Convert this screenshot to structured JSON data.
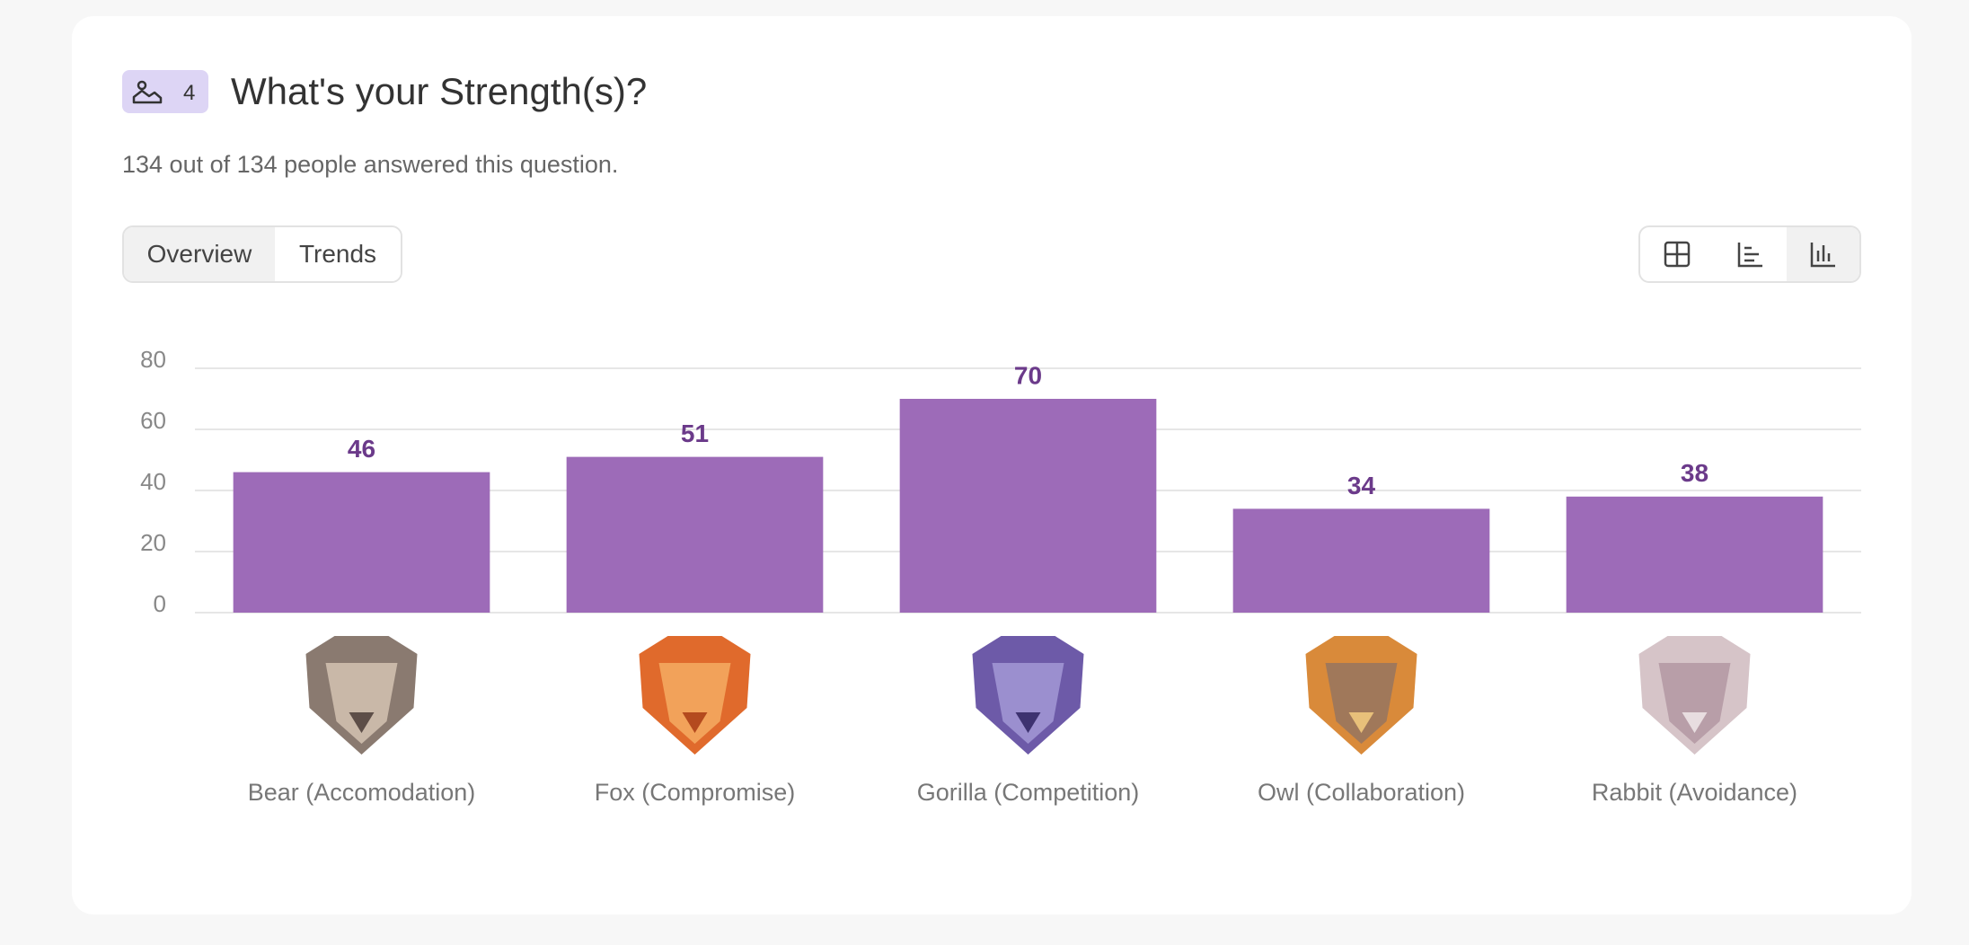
{
  "header": {
    "badge": 4,
    "title": "What's your Strength(s)?",
    "subtitle": "134 out of 134 people answered this question."
  },
  "tabs": [
    "Overview",
    "Trends"
  ],
  "chart_data": {
    "type": "bar",
    "categories": [
      "Bear (Accomodation)",
      "Fox (Compromise)",
      "Gorilla (Competition)",
      "Owl (Collaboration)",
      "Rabbit (Avoidance)"
    ],
    "values": [
      46,
      51,
      70,
      34,
      38
    ],
    "color": "#9d6bb8",
    "ylim": [
      0,
      80
    ],
    "yticks": [
      0,
      20,
      40,
      60,
      80
    ],
    "grid": true
  }
}
